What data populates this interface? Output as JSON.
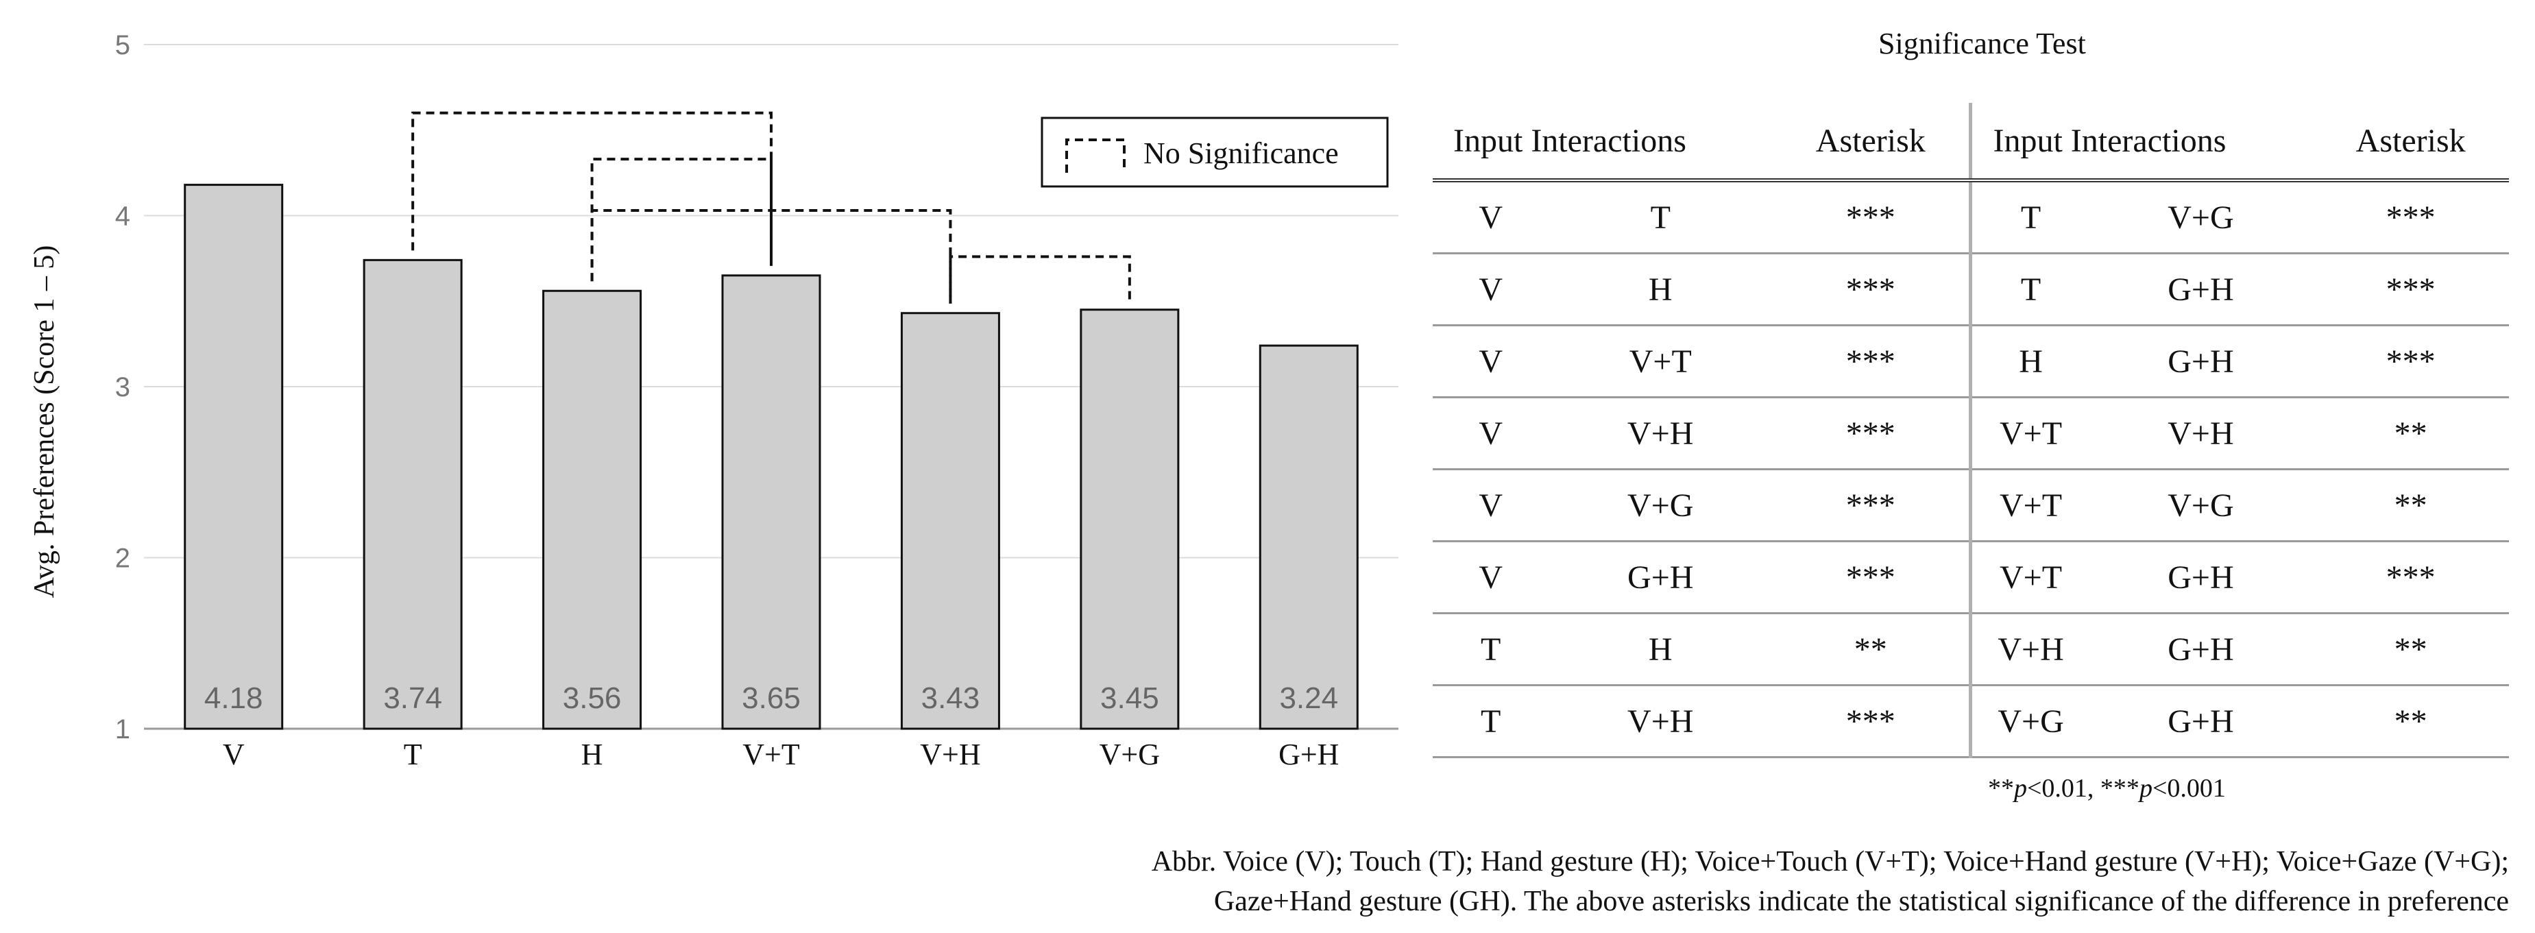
{
  "chart_data": {
    "type": "bar",
    "categories": [
      "V",
      "T",
      "H",
      "V+T",
      "V+H",
      "V+G",
      "G+H"
    ],
    "values": [
      4.18,
      3.74,
      3.56,
      3.65,
      3.43,
      3.45,
      3.24
    ],
    "value_labels": [
      "4.18",
      "3.74",
      "3.56",
      "3.65",
      "3.43",
      "3.45",
      "3.24"
    ],
    "ylabel": "Avg. Preferences (Score 1 – 5)",
    "ylim": [
      1,
      5
    ],
    "yticks": [
      "1",
      "2",
      "3",
      "4",
      "5"
    ],
    "grid": true,
    "bar_color": "#cfcfcf",
    "legend": {
      "label": "No Significance",
      "placement": "top-right"
    },
    "no_significance_brackets": [
      {
        "from": "T",
        "to": "V+T",
        "level": 4.6
      },
      {
        "from": "H",
        "to": "V+T",
        "level": 4.33
      },
      {
        "from": "H",
        "to": "V+H",
        "level": 4.03
      },
      {
        "from": "V+H",
        "to": "V+G",
        "level": 3.76
      }
    ]
  },
  "table": {
    "title": "Significance Test",
    "headers": [
      "Input Interactions",
      "Asterisk",
      "Input Interactions",
      "Asterisk"
    ],
    "rows": [
      [
        "V",
        "T",
        "***",
        "T",
        "V+G",
        "***"
      ],
      [
        "V",
        "H",
        "***",
        "T",
        "G+H",
        "***"
      ],
      [
        "V",
        "V+T",
        "***",
        "H",
        "G+H",
        "***"
      ],
      [
        "V",
        "V+H",
        "***",
        "V+T",
        "V+H",
        "**"
      ],
      [
        "V",
        "V+G",
        "***",
        "V+T",
        "V+G",
        "**"
      ],
      [
        "V",
        "G+H",
        "***",
        "V+T",
        "G+H",
        "***"
      ],
      [
        "T",
        "H",
        "**",
        "V+H",
        "G+H",
        "**"
      ],
      [
        "T",
        "V+H",
        "***",
        "V+G",
        "G+H",
        "**"
      ]
    ],
    "footnote_parts": [
      "**",
      "p",
      "<0.01, ***",
      "p",
      "<0.001"
    ]
  },
  "caption": {
    "line1": "Abbr. Voice (V); Touch (T); Hand gesture (H); Voice+Touch (V+T); Voice+Hand gesture (V+H); Voice+Gaze (V+G);",
    "line2": "Gaze+Hand gesture (GH). The above asterisks indicate the statistical significance of the difference in preference"
  }
}
